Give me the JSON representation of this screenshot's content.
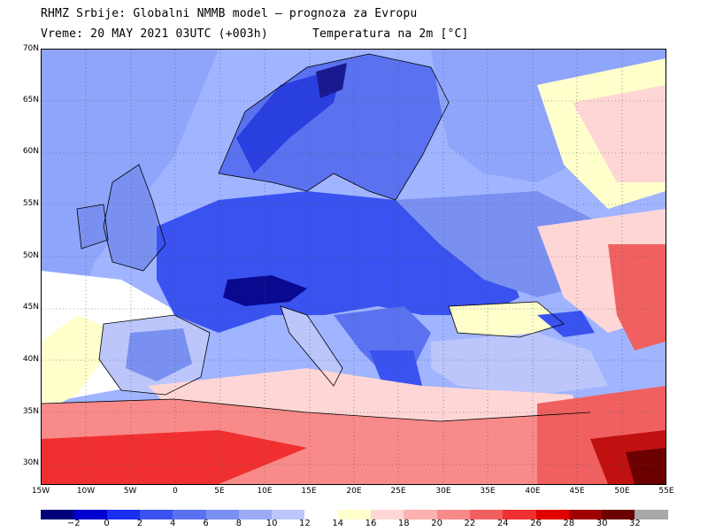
{
  "header": {
    "line1": "RHMZ Srbije: Globalni NMMB model — prognoza za Evropu",
    "line2": "Vreme: 20 MAY 2021 03UTC (+003h)",
    "line3": "Temperatura na 2m [°C]"
  },
  "map": {
    "lat_labels": [
      "70N",
      "65N",
      "60N",
      "55N",
      "50N",
      "45N",
      "40N",
      "35N",
      "30N"
    ],
    "lon_labels": [
      "15W",
      "10W",
      "5W",
      "0",
      "5E",
      "10E",
      "15E",
      "20E",
      "25E",
      "30E",
      "35E",
      "40E",
      "45E",
      "50E",
      "55E"
    ],
    "colors": {
      "land_cool": "#6f86f0",
      "deep_blue": "#2a3fe0",
      "mid_blue": "#5068f0",
      "light_blue": "#a9b8ff",
      "pale": "#ffffcc",
      "pink": "#ffb6b6",
      "red": "#f05a5a",
      "dark_red": "#c01010",
      "coast": "#000000"
    }
  },
  "legend": {
    "labels": [
      "−2",
      "0",
      "2",
      "4",
      "6",
      "8",
      "10",
      "12",
      "14",
      "16",
      "18",
      "20",
      "22",
      "24",
      "26",
      "28",
      "30",
      "32"
    ],
    "colors": [
      "#00007a",
      "#0000d0",
      "#1a2ef0",
      "#3a52f0",
      "#5a72f0",
      "#7a90f0",
      "#9aaaf6",
      "#bcc6fb",
      "#ffffff",
      "#ffffcc",
      "#ffd6d6",
      "#ffb0b0",
      "#f88a8a",
      "#f06060",
      "#f03030",
      "#e00000",
      "#a00000",
      "#6b0000",
      "#a8a8a8"
    ]
  }
}
